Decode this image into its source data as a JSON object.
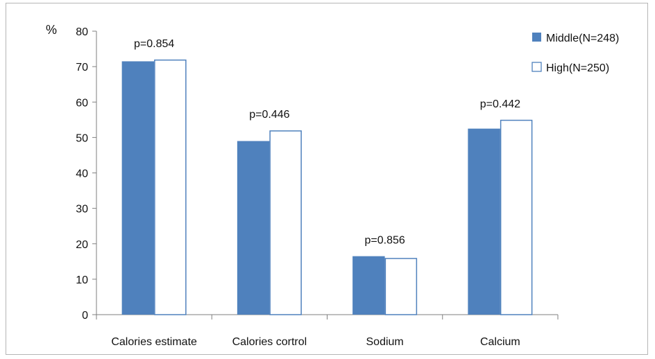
{
  "chart_data": {
    "type": "bar",
    "title": "",
    "ylabel": "%",
    "xlabel": "",
    "ylim": [
      0,
      80
    ],
    "yticks": [
      0,
      10,
      20,
      30,
      40,
      50,
      60,
      70,
      80
    ],
    "grid": false,
    "legend_position": "top-right",
    "categories": [
      "Calories estimate",
      "Calories cortrol",
      "Sodium",
      "Calcium"
    ],
    "series": [
      {
        "name": "Middle(N=248)",
        "values": [
          71.5,
          49,
          16.5,
          52.5
        ],
        "color": "#4f81bd",
        "style": "filled"
      },
      {
        "name": "High(N=250)",
        "values": [
          72,
          52,
          16,
          55
        ],
        "color": "#ffffff",
        "stroke": "#4f81bd",
        "style": "outline"
      }
    ],
    "annotations": [
      "p=0.854",
      "p=0.446",
      "p=0.856",
      "p=0.442"
    ]
  }
}
